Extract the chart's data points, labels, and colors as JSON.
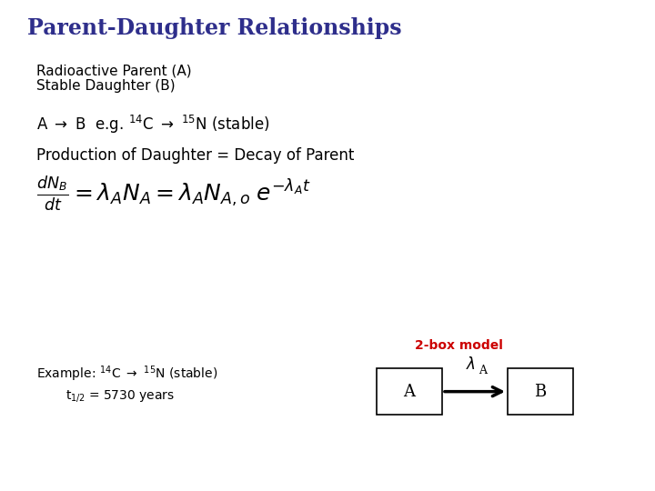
{
  "title": "Parent-Daughter Relationships",
  "title_color": "#2E2E8B",
  "bg_color": "#FFFFFF",
  "text_color": "#000000",
  "twobox_color": "#CC0000",
  "line1": "Radioactive Parent (A)",
  "line2": "Stable Daughter (B)",
  "production_text": "Production of Daughter = Decay of Parent",
  "twobox_label": "2-box model",
  "box_label_A": "A",
  "box_label_B": "B"
}
